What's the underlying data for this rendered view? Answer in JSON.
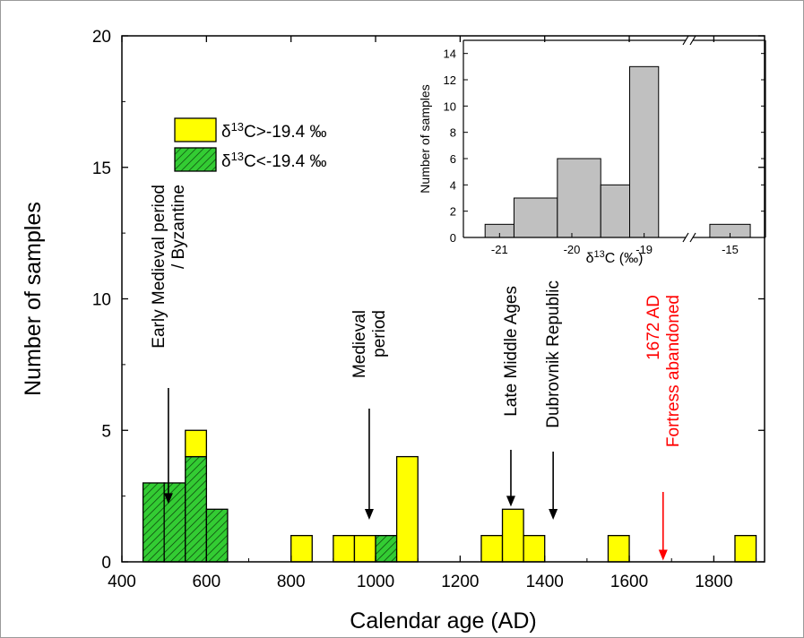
{
  "chart_data": [
    {
      "type": "bar",
      "subtype": "stacked-histogram",
      "xlabel": "Calendar age (AD)",
      "ylabel": "Number of samples",
      "xlim": [
        400,
        1920
      ],
      "ylim": [
        0,
        20
      ],
      "xticks": [
        400,
        600,
        800,
        1000,
        1200,
        1400,
        1600,
        1800
      ],
      "yticks": [
        0,
        5,
        10,
        15,
        20
      ],
      "bin_width": 50,
      "bins": [
        {
          "start": 450,
          "green": 3,
          "yellow": 0
        },
        {
          "start": 500,
          "green": 3,
          "yellow": 0
        },
        {
          "start": 550,
          "green": 4,
          "yellow": 1
        },
        {
          "start": 600,
          "green": 2,
          "yellow": 0
        },
        {
          "start": 800,
          "green": 0,
          "yellow": 1
        },
        {
          "start": 900,
          "green": 0,
          "yellow": 1
        },
        {
          "start": 950,
          "green": 0,
          "yellow": 1
        },
        {
          "start": 1000,
          "green": 1,
          "yellow": 0
        },
        {
          "start": 1050,
          "green": 0,
          "yellow": 4
        },
        {
          "start": 1250,
          "green": 0,
          "yellow": 1
        },
        {
          "start": 1300,
          "green": 0,
          "yellow": 2
        },
        {
          "start": 1350,
          "green": 0,
          "yellow": 1
        },
        {
          "start": 1550,
          "green": 0,
          "yellow": 1
        },
        {
          "start": 1850,
          "green": 0,
          "yellow": 1
        }
      ],
      "legend": {
        "placement": "upper-left",
        "items": [
          {
            "sym": "δ",
            "sup": "13",
            "label": "C>-19.4 ‰",
            "color": "#ffff00",
            "hatch": false
          },
          {
            "sym": "δ",
            "sup": "13",
            "label": "C<-19.4 ‰",
            "color": "#33cc33",
            "hatch": true
          }
        ]
      },
      "annotations": [
        {
          "lines": [
            "Early Medieval period",
            "/ Byzantine"
          ],
          "x": 510,
          "arrow_tip_y": 2.2,
          "color": "#000000"
        },
        {
          "lines": [
            "Medieval",
            "period"
          ],
          "x": 985,
          "arrow_tip_y": 1.6,
          "color": "#000000"
        },
        {
          "lines": [
            "Late Middle Ages"
          ],
          "x": 1320,
          "arrow_tip_y": 2.1,
          "color": "#000000"
        },
        {
          "lines": [
            "Dubrovnik Republic"
          ],
          "x": 1420,
          "arrow_tip_y": 1.6,
          "color": "#000000"
        },
        {
          "lines": [
            "1672 AD",
            "Fortress abandoned"
          ],
          "x": 1680,
          "arrow_tip_y": 0.05,
          "color": "#ff0000"
        }
      ]
    },
    {
      "type": "bar",
      "subtype": "histogram-inset",
      "xlabel_sym": "δ",
      "xlabel_sup": "13",
      "xlabel_rest": "C (‰)",
      "ylabel": "Number of samples",
      "ylim": [
        0,
        15
      ],
      "yticks": [
        0,
        2,
        4,
        6,
        8,
        10,
        12,
        14
      ],
      "x_axis_break": true,
      "xticks": [
        "-21",
        "-20",
        "-19",
        "-15"
      ],
      "bins": [
        {
          "from": -21.2,
          "to": -20.8,
          "value": 1
        },
        {
          "from": -20.8,
          "to": -20.2,
          "value": 3
        },
        {
          "from": -20.2,
          "to": -19.6,
          "value": 6
        },
        {
          "from": -19.6,
          "to": -19.2,
          "value": 4
        },
        {
          "from": -19.2,
          "to": -18.8,
          "value": 13
        },
        {
          "from": -15.4,
          "to": -14.6,
          "value": 1
        }
      ],
      "bar_color": "#c0c0c0"
    }
  ]
}
